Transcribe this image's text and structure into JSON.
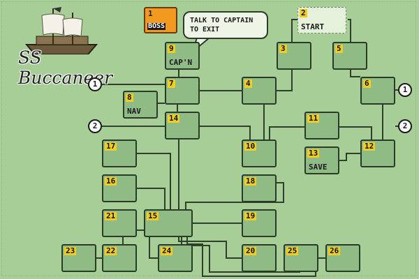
{
  "title": "SS Buccaneer",
  "dialog": {
    "line1": "TALK TO CAPTAIN",
    "line2": "TO EXIT"
  },
  "exit_markers": {
    "one": "1",
    "two": "2"
  },
  "colors": {
    "background": "#a8ce97",
    "room": "#8fbb84",
    "badge": "#f1cd22",
    "boss": "#f29a20"
  },
  "rooms": {
    "r1": {
      "num": "1",
      "label": "BOSS"
    },
    "r2": {
      "num": "2",
      "label": "START"
    },
    "r3": {
      "num": "3"
    },
    "r4": {
      "num": "4"
    },
    "r5": {
      "num": "5"
    },
    "r6": {
      "num": "6"
    },
    "r7": {
      "num": "7"
    },
    "r8": {
      "num": "8",
      "label": "NAV"
    },
    "r9": {
      "num": "9",
      "label": "CAP'N"
    },
    "r10": {
      "num": "10"
    },
    "r11": {
      "num": "11"
    },
    "r12": {
      "num": "12"
    },
    "r13": {
      "num": "13",
      "label": "SAVE"
    },
    "r14": {
      "num": "14"
    },
    "r15": {
      "num": "15"
    },
    "r16": {
      "num": "16"
    },
    "r17": {
      "num": "17"
    },
    "r18": {
      "num": "18"
    },
    "r19": {
      "num": "19"
    },
    "r20": {
      "num": "20"
    },
    "r21": {
      "num": "21"
    },
    "r22": {
      "num": "22"
    },
    "r23": {
      "num": "23"
    },
    "r24": {
      "num": "24"
    },
    "r25": {
      "num": "25"
    },
    "r26": {
      "num": "26"
    }
  }
}
